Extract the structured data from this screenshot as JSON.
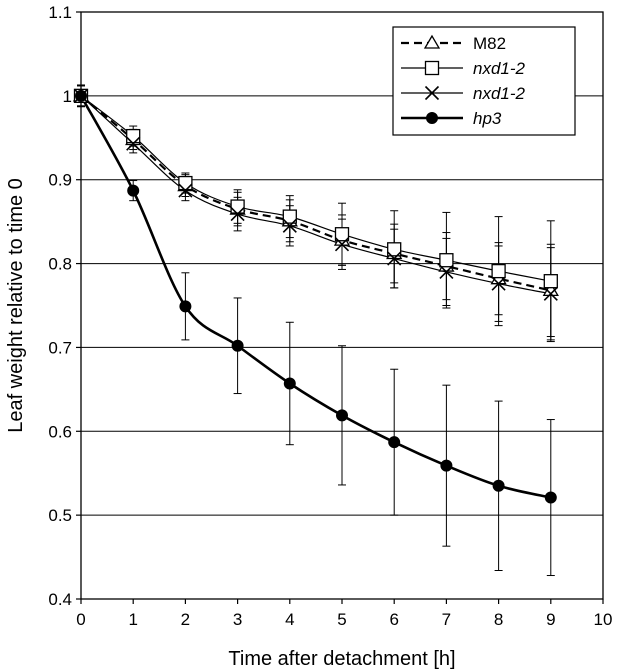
{
  "chart_data": {
    "type": "line",
    "xlabel": "Time after detachment [h]",
    "ylabel": "Leaf weight relative to time 0",
    "xlim": [
      0,
      10
    ],
    "ylim": [
      0.4,
      1.1
    ],
    "xticks": [
      0,
      1,
      2,
      3,
      4,
      5,
      6,
      7,
      8,
      9,
      10
    ],
    "yticks": [
      0.4,
      0.5,
      0.6,
      0.7,
      0.8,
      0.9,
      1,
      1.1
    ],
    "ytick_labels": [
      "0.4",
      "0.5",
      "0.6",
      "0.7",
      "0.8",
      "0.9",
      "1",
      "1.1"
    ],
    "grid": "horizontal",
    "legend_position": "top-right",
    "x": [
      0,
      1,
      2,
      3,
      4,
      5,
      6,
      7,
      8,
      9
    ],
    "series": [
      {
        "name": "M82",
        "italic": false,
        "marker": "triangle",
        "line": "dashed",
        "values": [
          1.0,
          0.948,
          0.893,
          0.865,
          0.851,
          0.828,
          0.812,
          0.797,
          0.782,
          0.768
        ],
        "errors": [
          0.013,
          0.012,
          0.013,
          0.02,
          0.025,
          0.03,
          0.035,
          0.04,
          0.043,
          0.055
        ]
      },
      {
        "name": "nxd1-2",
        "italic": true,
        "marker": "square",
        "line": "solid-thin",
        "values": [
          1.0,
          0.952,
          0.896,
          0.868,
          0.856,
          0.835,
          0.817,
          0.804,
          0.791,
          0.779
        ],
        "errors": [
          0.012,
          0.012,
          0.012,
          0.02,
          0.025,
          0.037,
          0.046,
          0.057,
          0.065,
          0.072
        ]
      },
      {
        "name": "nxd1-2",
        "italic": true,
        "marker": "x",
        "line": "solid-thin",
        "values": [
          1.0,
          0.943,
          0.887,
          0.859,
          0.845,
          0.823,
          0.806,
          0.79,
          0.776,
          0.764
        ],
        "errors": [
          0.012,
          0.011,
          0.012,
          0.02,
          0.024,
          0.03,
          0.035,
          0.04,
          0.045,
          0.055
        ]
      },
      {
        "name": "hp3",
        "italic": true,
        "marker": "filled-circle",
        "line": "solid-thick",
        "values": [
          1.0,
          0.887,
          0.749,
          0.702,
          0.657,
          0.619,
          0.587,
          0.559,
          0.535,
          0.521
        ],
        "errors": [
          0.012,
          0.012,
          0.04,
          0.057,
          0.073,
          0.083,
          0.087,
          0.096,
          0.101,
          0.093
        ]
      }
    ]
  },
  "colors": {
    "line": "#000000",
    "background": "#ffffff",
    "grid": "#000000"
  }
}
